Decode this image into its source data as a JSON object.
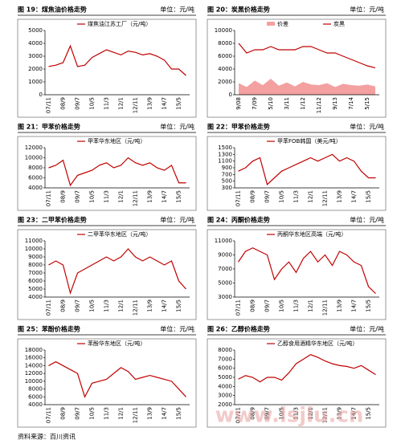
{
  "chart_data": [
    {
      "type": "line",
      "title": "图 19：煤焦油价格走势",
      "unit": "单位：元/吨",
      "categories": [
        "07/11",
        null,
        "08/9",
        null,
        "09/7",
        null,
        "10/5",
        null,
        "11/3",
        null,
        "12/1",
        null,
        "12/11",
        null,
        "13/9",
        null,
        "14/7",
        null,
        "15/5",
        null
      ],
      "ylim": [
        0,
        5000
      ],
      "yticks": [
        0,
        1000,
        2000,
        3000,
        4000,
        5000
      ],
      "series": [
        {
          "name": "煤焦油江苏工厂（元/吨）",
          "color": "#c00000",
          "values": [
            2200,
            2300,
            2500,
            3800,
            2200,
            2300,
            2900,
            3200,
            3500,
            3300,
            3100,
            3400,
            3300,
            3100,
            3200,
            3000,
            2700,
            2000,
            2000,
            1500
          ]
        }
      ]
    },
    {
      "type": "line",
      "title": "图 20：炭黑价格走势",
      "unit": "单位：元/吨",
      "categories": [
        "9/08",
        null,
        "7/09",
        null,
        "5/10",
        null,
        "3/11",
        null,
        "1/12",
        null,
        "11/12",
        null,
        "9/13",
        null,
        "7/14",
        null,
        "5/15",
        null
      ],
      "ylim": [
        0,
        10000
      ],
      "yticks": [
        0,
        2000,
        4000,
        6000,
        8000,
        10000
      ],
      "series": [
        {
          "name": "价差",
          "color": "#f4a0a0",
          "style": "area",
          "values": [
            1800,
            1200,
            2200,
            1500,
            2500,
            1400,
            1900,
            1300,
            2000,
            1600,
            1500,
            1800,
            1200,
            1700,
            1500,
            1400,
            1600,
            1300
          ]
        },
        {
          "name": "炭黑",
          "color": "#c00000",
          "style": "line",
          "values": [
            8000,
            6500,
            7000,
            7000,
            7500,
            7000,
            7000,
            7000,
            7500,
            7500,
            7000,
            6500,
            6500,
            6000,
            5500,
            5000,
            4500,
            4200
          ]
        }
      ]
    },
    {
      "type": "line",
      "title": "图 21：甲苯价格走势",
      "unit": "单位：元/吨",
      "categories": [
        "07/11",
        null,
        "08/9",
        null,
        "09/7",
        null,
        "10/5",
        null,
        "11/3",
        null,
        "12/1",
        null,
        "12/11",
        null,
        "13/9",
        null,
        "14/7",
        null,
        "15/5",
        null
      ],
      "ylim": [
        4000,
        12000
      ],
      "yticks": [
        4000,
        6000,
        8000,
        10000,
        12000
      ],
      "series": [
        {
          "name": "甲苯华东地区（元/吨）",
          "color": "#c00000",
          "values": [
            8000,
            8500,
            9500,
            4500,
            6500,
            7000,
            7500,
            8500,
            9000,
            8000,
            8500,
            10000,
            9000,
            8500,
            9000,
            8000,
            7500,
            8500,
            5000,
            5000
          ]
        }
      ]
    },
    {
      "type": "line",
      "title": "图 22：甲苯价格走势",
      "unit": "单位：元/吨",
      "categories": [
        "07/11",
        null,
        "08/9",
        null,
        "09/7",
        null,
        "10/5",
        null,
        "11/3",
        null,
        "12/1",
        null,
        "12/11",
        null,
        "13/9",
        null,
        "14/7",
        null,
        "15/5",
        null
      ],
      "ylim": [
        300,
        1500
      ],
      "yticks": [
        300,
        500,
        700,
        900,
        1100,
        1300,
        1500
      ],
      "series": [
        {
          "name": "甲苯FOB韩国（美元/吨）",
          "color": "#c00000",
          "values": [
            800,
            900,
            1100,
            1200,
            400,
            600,
            800,
            900,
            1000,
            1100,
            1200,
            1100,
            1200,
            1300,
            1100,
            1200,
            1100,
            800,
            600,
            600
          ]
        }
      ]
    },
    {
      "type": "line",
      "title": "图 23：二甲苯价格走势",
      "unit": "单位：元/吨",
      "categories": [
        "07/11",
        null,
        "08/9",
        null,
        "09/7",
        null,
        "10/5",
        null,
        "11/3",
        null,
        "12/1",
        null,
        "12/11",
        null,
        "13/9",
        null,
        "14/7",
        null,
        "15/5",
        null
      ],
      "ylim": [
        4000,
        11000
      ],
      "yticks": [
        4000,
        5000,
        6000,
        7000,
        8000,
        9000,
        10000,
        11000
      ],
      "series": [
        {
          "name": "二甲苯华东地区（元/吨）",
          "color": "#c00000",
          "values": [
            8000,
            8500,
            8000,
            4500,
            7000,
            7500,
            8000,
            8500,
            9000,
            8500,
            9000,
            10000,
            9000,
            8500,
            9000,
            8500,
            8000,
            8500,
            6000,
            5000
          ]
        }
      ]
    },
    {
      "type": "line",
      "title": "图 24：丙酮价格走势",
      "unit": "单位：元/吨",
      "categories": [
        "07/11",
        null,
        "08/9",
        null,
        "09/7",
        null,
        "10/5",
        null,
        "11/3",
        null,
        "12/1",
        null,
        "12/11",
        null,
        "13/9",
        null,
        "14/7",
        null,
        "15/5",
        null
      ],
      "ylim": [
        3000,
        11000
      ],
      "yticks": [
        3000,
        5000,
        7000,
        9000,
        11000
      ],
      "series": [
        {
          "name": "丙酮华东地区高端（元/吨）",
          "color": "#c00000",
          "values": [
            8000,
            9500,
            10000,
            9500,
            9000,
            5500,
            7000,
            8000,
            6500,
            8500,
            9500,
            8000,
            9000,
            7500,
            9500,
            9000,
            8000,
            7500,
            4500,
            3500
          ]
        }
      ]
    },
    {
      "type": "line",
      "title": "图 25：苯酚价格走势",
      "unit": "单位：元/吨",
      "categories": [
        "07/11",
        null,
        "08/9",
        null,
        "09/7",
        null,
        "10/5",
        null,
        "11/3",
        null,
        "12/1",
        null,
        "12/11",
        null,
        "13/9",
        null,
        "14/7",
        null,
        "15/5",
        null
      ],
      "ylim": [
        4000,
        18000
      ],
      "yticks": [
        4000,
        6000,
        8000,
        10000,
        12000,
        14000,
        16000,
        18000
      ],
      "series": [
        {
          "name": "苯酚华东地区（元/吨）",
          "color": "#c00000",
          "values": [
            14000,
            15000,
            14000,
            13000,
            12000,
            6000,
            9500,
            10000,
            10500,
            12000,
            13500,
            12500,
            10500,
            11000,
            11500,
            11000,
            10500,
            10000,
            8000,
            6000
          ]
        }
      ]
    },
    {
      "type": "line",
      "title": "图 26：乙醇价格走势",
      "unit": "单位：元/吨",
      "categories": [
        "07/11",
        null,
        "08/9",
        null,
        "09/7",
        null,
        "10/5",
        null,
        "11/3",
        null,
        "12/1",
        null,
        "12/11",
        null,
        "13/9",
        null,
        "14/7",
        null,
        "15/5",
        null
      ],
      "ylim": [
        2000,
        8000
      ],
      "yticks": [
        2000,
        3000,
        4000,
        5000,
        6000,
        7000,
        8000
      ],
      "series": [
        {
          "name": "乙醇食用酒精华东地区（元/吨）",
          "color": "#c00000",
          "values": [
            4800,
            5200,
            5000,
            4500,
            5000,
            5000,
            4700,
            5500,
            6500,
            7000,
            7500,
            7200,
            6800,
            6500,
            6300,
            6200,
            6000,
            6300,
            5800,
            5300
          ]
        }
      ]
    }
  ],
  "source": "资料来源：百川资讯",
  "watermark": "www.lsjlu.cn"
}
